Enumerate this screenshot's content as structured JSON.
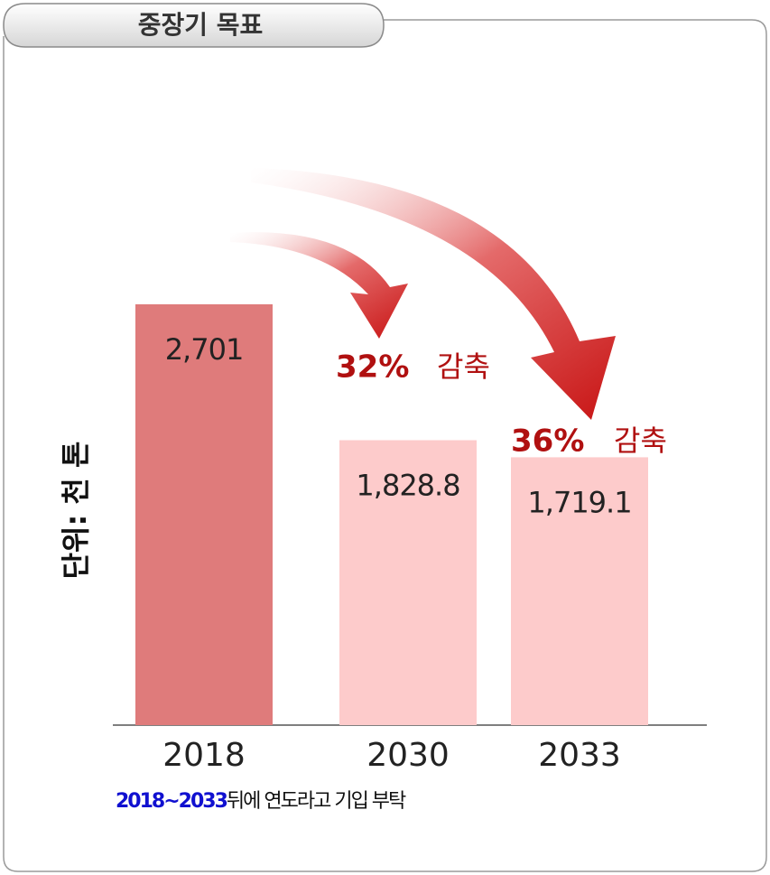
{
  "header": {
    "title": "중장기 목표"
  },
  "chart_data": {
    "type": "bar",
    "y_label": "단위: 천 톤",
    "categories": [
      "2018",
      "2030",
      "2033"
    ],
    "values": [
      2701,
      1828.8,
      1719.1
    ],
    "value_labels": [
      "2,701",
      "1,828.8",
      "1,719.1"
    ],
    "colors": [
      "#df7b7b",
      "#fdcbcb",
      "#fdcbcb"
    ],
    "annotations": [
      {
        "value": 32,
        "label": "32%",
        "text": "감축"
      },
      {
        "value": 36,
        "label": "36%",
        "text": "감축"
      }
    ]
  },
  "note": {
    "years": "2018~2033",
    "text": "뒤에 연도라고 기입 부탁"
  }
}
